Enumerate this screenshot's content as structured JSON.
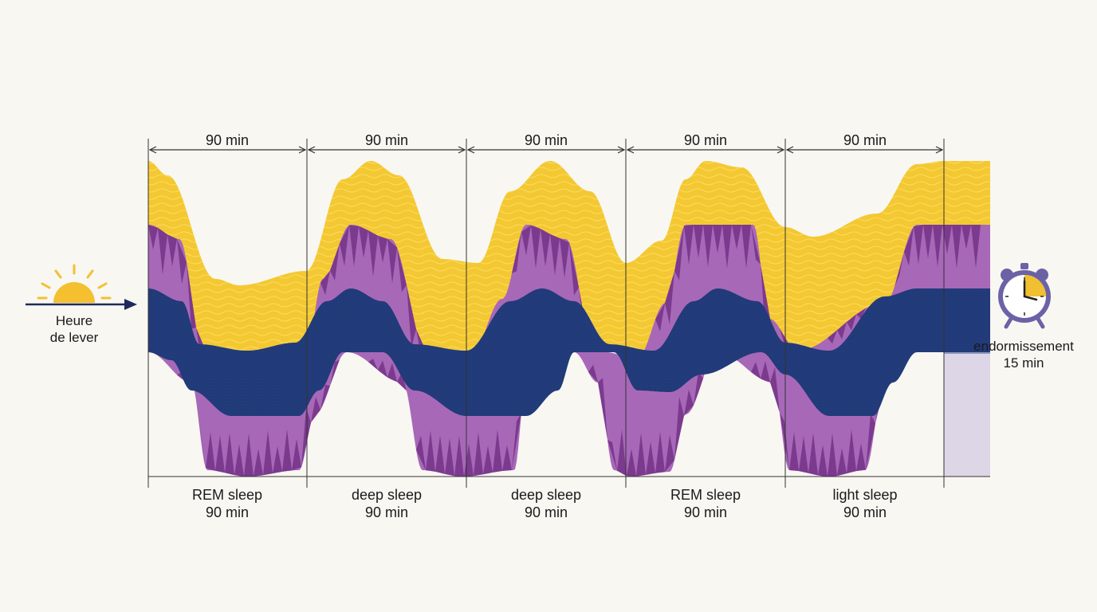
{
  "colors": {
    "background": "#f8f7f2",
    "light_sleep": "#f4c832",
    "light_sleep_wave": "#f9dc5e",
    "rem_spikes": "#7b3a8e",
    "rem_band": "#a868b8",
    "deep_sleep": "#223b7a",
    "sleep_onset_top": "#b58ec2",
    "sleep_onset_mid": "#8d95bd",
    "sleep_onset_bottom": "#ddd6e6",
    "arrow": "#1e2a5c",
    "sun": "#f4c030",
    "clock_body": "#6b62a6",
    "clock_accent": "#f0c030"
  },
  "icons": [
    "sun-icon",
    "alarm-clock-icon"
  ],
  "wake_label": [
    "Heure",
    "de lever"
  ],
  "onset_label": [
    "endormissement",
    "15 min"
  ],
  "cycle_durations": [
    "90 min",
    "90 min",
    "90 min",
    "90 min",
    "90 min"
  ],
  "stages": [
    {
      "name": "REM sleep",
      "duration": "90 min"
    },
    {
      "name": "deep sleep",
      "duration": "90 min"
    },
    {
      "name": "deep sleep",
      "duration": "90 min"
    },
    {
      "name": "REM sleep",
      "duration": "90 min"
    },
    {
      "name": "light sleep",
      "duration": "90 min"
    }
  ]
}
